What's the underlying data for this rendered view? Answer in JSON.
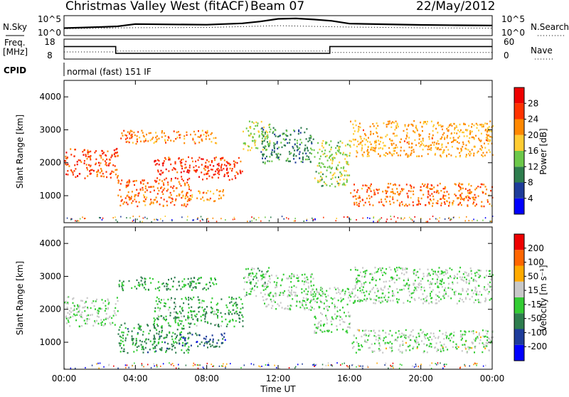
{
  "header": {
    "title": "Christmas Valley West (fitACF)",
    "beam": "Beam 07",
    "date": "22/May/2012"
  },
  "top_panels": {
    "nsky_label": "N.Sky",
    "nsearch_label": "N.Search",
    "noise_ticks": [
      "10^5",
      "10^0"
    ],
    "freq_label_line1": "Freq.",
    "freq_label_line2": "[MHz]",
    "freq_ticks": [
      "18",
      "8"
    ],
    "nave_label": "Nave",
    "nave_ticks": [
      "60",
      "0"
    ],
    "cpid_label": "CPID",
    "cpid_value": "normal (fast) 151 IF"
  },
  "power_panel": {
    "ylabel": "Slant Range [km]",
    "yticks": [
      "4000",
      "3000",
      "2000",
      "1000"
    ],
    "colorbar_label": "Power [dB]",
    "colorbar_ticks": [
      "28",
      "24",
      "20",
      "16",
      "12",
      "8",
      "4"
    ],
    "colorbar_colors": [
      "#0000ff",
      "#1e3c9a",
      "#2e7d4e",
      "#6cc84a",
      "#ffcc33",
      "#ff8800",
      "#ff3300",
      "#ee0000"
    ]
  },
  "velocity_panel": {
    "ylabel": "Slant Range [km]",
    "yticks": [
      "4000",
      "3000",
      "2000",
      "1000"
    ],
    "colorbar_label": "Velocity [m s⁻¹]",
    "colorbar_ticks": [
      "200",
      "100",
      "50",
      "15",
      "-15",
      "-50",
      "-100",
      "-200"
    ],
    "colorbar_colors": [
      "#0000ff",
      "#1e3c9a",
      "#2e7d4e",
      "#33cc33",
      "#c8c8c8",
      "#ffaa00",
      "#ff6600",
      "#ee0000"
    ]
  },
  "xaxis": {
    "xlabel": "Time UT",
    "ticks": [
      "00:00",
      "04:00",
      "08:00",
      "12:00",
      "16:00",
      "20:00",
      "00:00"
    ]
  },
  "chart_data": [
    {
      "type": "line",
      "title": "N.Sky / N.Search",
      "x_unit": "hours UT",
      "xlim": [
        0,
        24
      ],
      "ylog": true,
      "ylim": [
        1,
        100000
      ],
      "series": [
        {
          "name": "N.Sky",
          "x": [
            0,
            2,
            3,
            4,
            6,
            8,
            10,
            11,
            12,
            13,
            14,
            15,
            16,
            18,
            20,
            22,
            24
          ],
          "values": [
            60,
            120,
            200,
            900,
            700,
            600,
            1500,
            5000,
            30000,
            40000,
            20000,
            8000,
            1200,
            800,
            500,
            400,
            350
          ]
        },
        {
          "name": "N.Search",
          "x": [
            0,
            4,
            8,
            12,
            16,
            20,
            24
          ],
          "values": [
            40,
            80,
            90,
            300,
            120,
            70,
            60
          ]
        }
      ]
    },
    {
      "type": "line",
      "title": "Freq. / Nave",
      "x_unit": "hours UT",
      "xlim": [
        0,
        24
      ],
      "series": [
        {
          "name": "Freq.",
          "unit": "MHz",
          "ylim": [
            8,
            18
          ],
          "x": [
            0,
            2.9,
            2.9,
            14.9,
            14.9,
            24
          ],
          "values": [
            14.5,
            14.5,
            10.5,
            10.5,
            14.5,
            14.5
          ]
        },
        {
          "name": "Nave",
          "ylim": [
            0,
            60
          ],
          "x": [
            0,
            2.9,
            2.9,
            14.9,
            14.9,
            24
          ],
          "values": [
            20,
            20,
            23,
            23,
            18,
            18
          ]
        }
      ]
    },
    {
      "type": "heatmap",
      "title": "Power [dB]",
      "xlabel": "Time UT",
      "ylabel": "Slant Range [km]",
      "xlim": [
        0,
        24
      ],
      "ylim": [
        180,
        4500
      ],
      "value_range": [
        0,
        30
      ],
      "bands": [
        {
          "t": [
            0,
            3
          ],
          "range_km": [
            1550,
            2450
          ],
          "value": 24
        },
        {
          "t": [
            3,
            7
          ],
          "range_km": [
            700,
            1500
          ],
          "value": 22
        },
        {
          "t": [
            5,
            10
          ],
          "range_km": [
            1500,
            2200
          ],
          "value": 25
        },
        {
          "t": [
            3,
            8.5
          ],
          "range_km": [
            2600,
            3000
          ],
          "value": 21
        },
        {
          "t": [
            6.5,
            9
          ],
          "range_km": [
            850,
            1200
          ],
          "value": 20
        },
        {
          "t": [
            10,
            11.5
          ],
          "range_km": [
            2400,
            3300
          ],
          "value": 15
        },
        {
          "t": [
            11,
            14
          ],
          "range_km": [
            2000,
            3100
          ],
          "value": 10
        },
        {
          "t": [
            14,
            16
          ],
          "range_km": [
            1300,
            2700
          ],
          "value": 14
        },
        {
          "t": [
            16,
            24
          ],
          "range_km": [
            700,
            1400
          ],
          "value": 22
        },
        {
          "t": [
            16,
            24
          ],
          "range_km": [
            2200,
            3300
          ],
          "value": 19
        }
      ]
    },
    {
      "type": "heatmap",
      "title": "Velocity [m s⁻¹]",
      "xlabel": "Time UT",
      "ylabel": "Slant Range [km]",
      "xlim": [
        0,
        24
      ],
      "ylim": [
        180,
        4500
      ],
      "value_range": [
        -200,
        200
      ],
      "bands": [
        {
          "t": [
            0,
            3
          ],
          "range_km": [
            1500,
            2400
          ],
          "value": 0
        },
        {
          "t": [
            3,
            7
          ],
          "range_km": [
            700,
            1600
          ],
          "value": -60
        },
        {
          "t": [
            5,
            10
          ],
          "range_km": [
            1500,
            2400
          ],
          "value": -40
        },
        {
          "t": [
            3,
            8.5
          ],
          "range_km": [
            2600,
            3000
          ],
          "value": -50
        },
        {
          "t": [
            6.5,
            9
          ],
          "range_km": [
            850,
            1300
          ],
          "value": -110
        },
        {
          "t": [
            10,
            11.5
          ],
          "range_km": [
            2400,
            3300
          ],
          "value": -20
        },
        {
          "t": [
            11,
            14
          ],
          "range_km": [
            2000,
            3100
          ],
          "value": 0
        },
        {
          "t": [
            14,
            16
          ],
          "range_km": [
            1300,
            2700
          ],
          "value": 0
        },
        {
          "t": [
            16,
            24
          ],
          "range_km": [
            700,
            1400
          ],
          "value": 5
        },
        {
          "t": [
            16,
            24
          ],
          "range_km": [
            2200,
            3300
          ],
          "value": 0
        }
      ]
    }
  ]
}
